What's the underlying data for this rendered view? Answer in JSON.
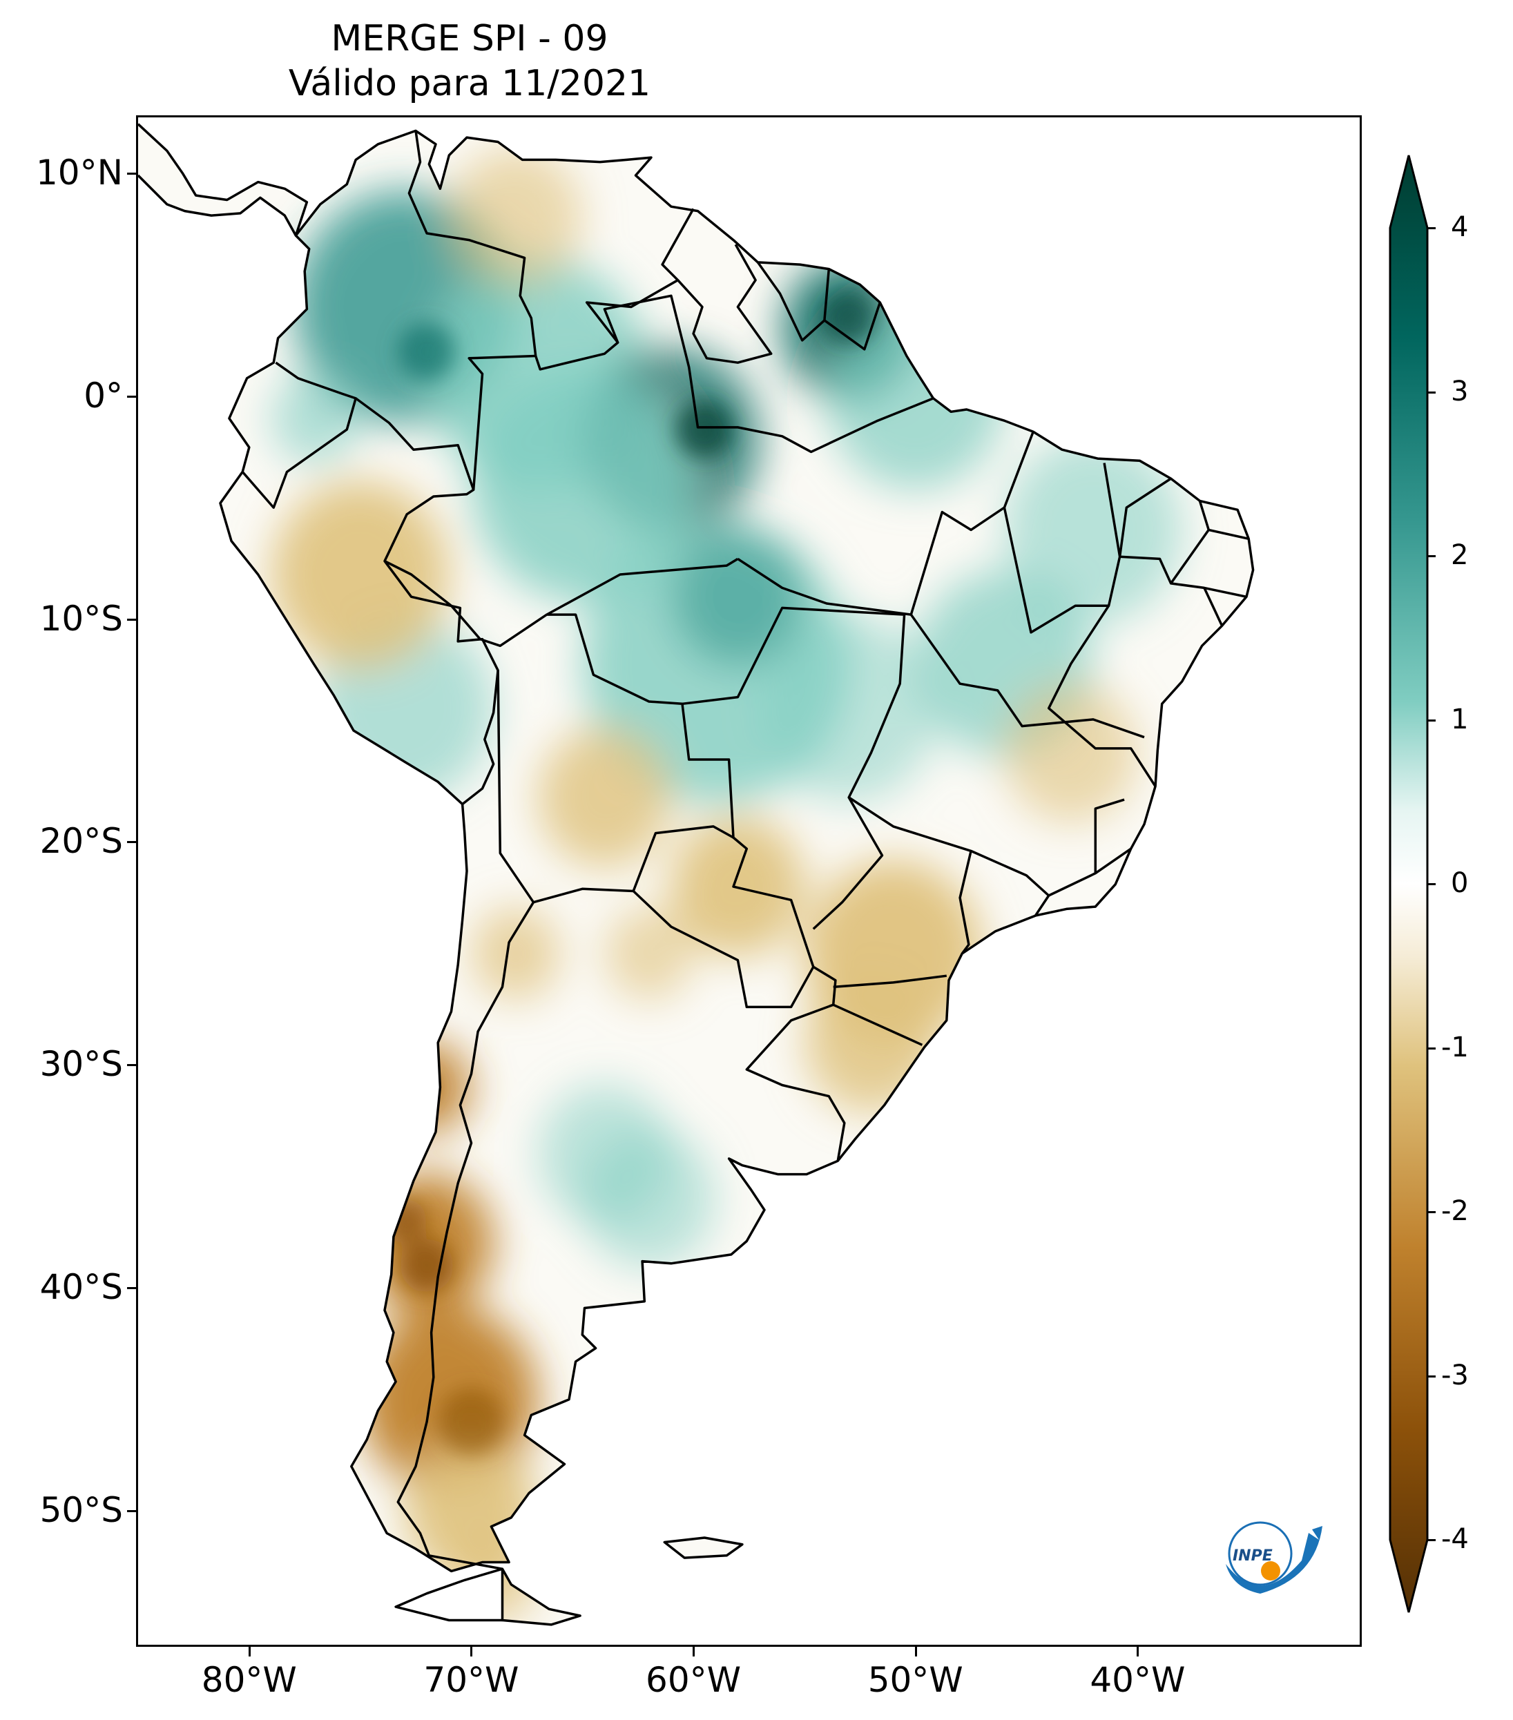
{
  "title": {
    "line1": "MERGE   SPI - 09",
    "line2": "Válido para 11/2021"
  },
  "axes": {
    "lat_ticks": [
      {
        "label": "10°N",
        "lat": 10
      },
      {
        "label": "0°",
        "lat": 0
      },
      {
        "label": "10°S",
        "lat": -10
      },
      {
        "label": "20°S",
        "lat": -20
      },
      {
        "label": "30°S",
        "lat": -30
      },
      {
        "label": "40°S",
        "lat": -40
      },
      {
        "label": "50°S",
        "lat": -50
      }
    ],
    "lon_ticks": [
      {
        "label": "80°W",
        "lon": -80
      },
      {
        "label": "70°W",
        "lon": -70
      },
      {
        "label": "60°W",
        "lon": -60
      },
      {
        "label": "50°W",
        "lon": -50
      },
      {
        "label": "40°W",
        "lon": -40
      }
    ],
    "extent": {
      "lon_min": -85,
      "lon_max": -30,
      "lat_min": -56,
      "lat_max": 12.5
    }
  },
  "colorbar": {
    "ticks": [
      "4",
      "3",
      "2",
      "1",
      "0",
      "-1",
      "-2",
      "-3",
      "-4"
    ],
    "range": [
      -4,
      4
    ],
    "extend": "both",
    "colormap": "BrBG",
    "colors": {
      "pos4": "#003c30",
      "pos3": "#01665e",
      "pos2": "#35978f",
      "pos1": "#80cdc1",
      "zero": "#ffffff",
      "neg1": "#dfc27d",
      "neg2": "#bf812d",
      "neg3": "#8c510a",
      "neg4": "#543005"
    }
  },
  "logo": {
    "text": "INPE"
  }
}
